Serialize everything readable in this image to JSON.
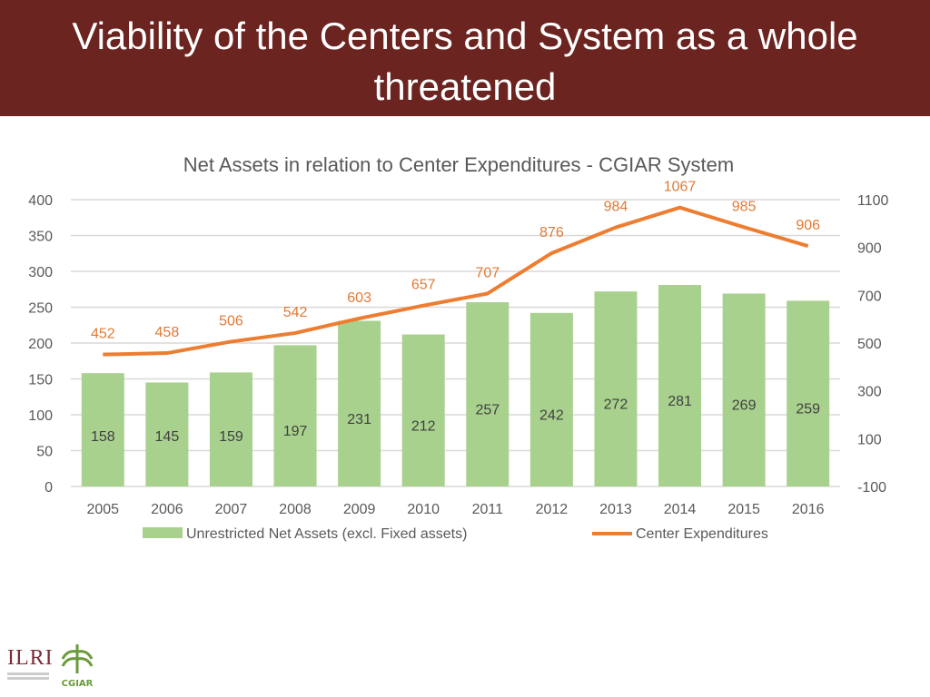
{
  "slide": {
    "title": "Viability of the Centers and System as a whole threatened",
    "title_bg": "#6b2420"
  },
  "logos": {
    "ilri": "ILRI",
    "cgiar": "CGIAR"
  },
  "chart_data": {
    "type": "bar+line",
    "title": "Net Assets in relation to Center Expenditures - CGIAR System",
    "categories": [
      "2005",
      "2006",
      "2007",
      "2008",
      "2009",
      "2010",
      "2011",
      "2012",
      "2013",
      "2014",
      "2015",
      "2016"
    ],
    "series": [
      {
        "name": "Unrestricted Net Assets (excl. Fixed assets)",
        "type": "bar",
        "axis": "left",
        "color": "#a9d18e",
        "values": [
          158,
          145,
          159,
          197,
          231,
          212,
          257,
          242,
          272,
          281,
          269,
          259
        ]
      },
      {
        "name": "Center Expenditures",
        "type": "line",
        "axis": "right",
        "color": "#ed7d31",
        "values": [
          452,
          458,
          506,
          542,
          603,
          657,
          707,
          876,
          984,
          1067,
          985,
          906
        ]
      }
    ],
    "left_axis": {
      "ylim": [
        0,
        400
      ],
      "ticks": [
        "0",
        "50",
        "100",
        "150",
        "200",
        "250",
        "300",
        "350",
        "400"
      ]
    },
    "right_axis": {
      "ylim": [
        -100,
        1100
      ],
      "ticks": [
        "-100",
        "100",
        "300",
        "500",
        "700",
        "900",
        "1100"
      ]
    },
    "grid": true,
    "legend": "bottom"
  }
}
